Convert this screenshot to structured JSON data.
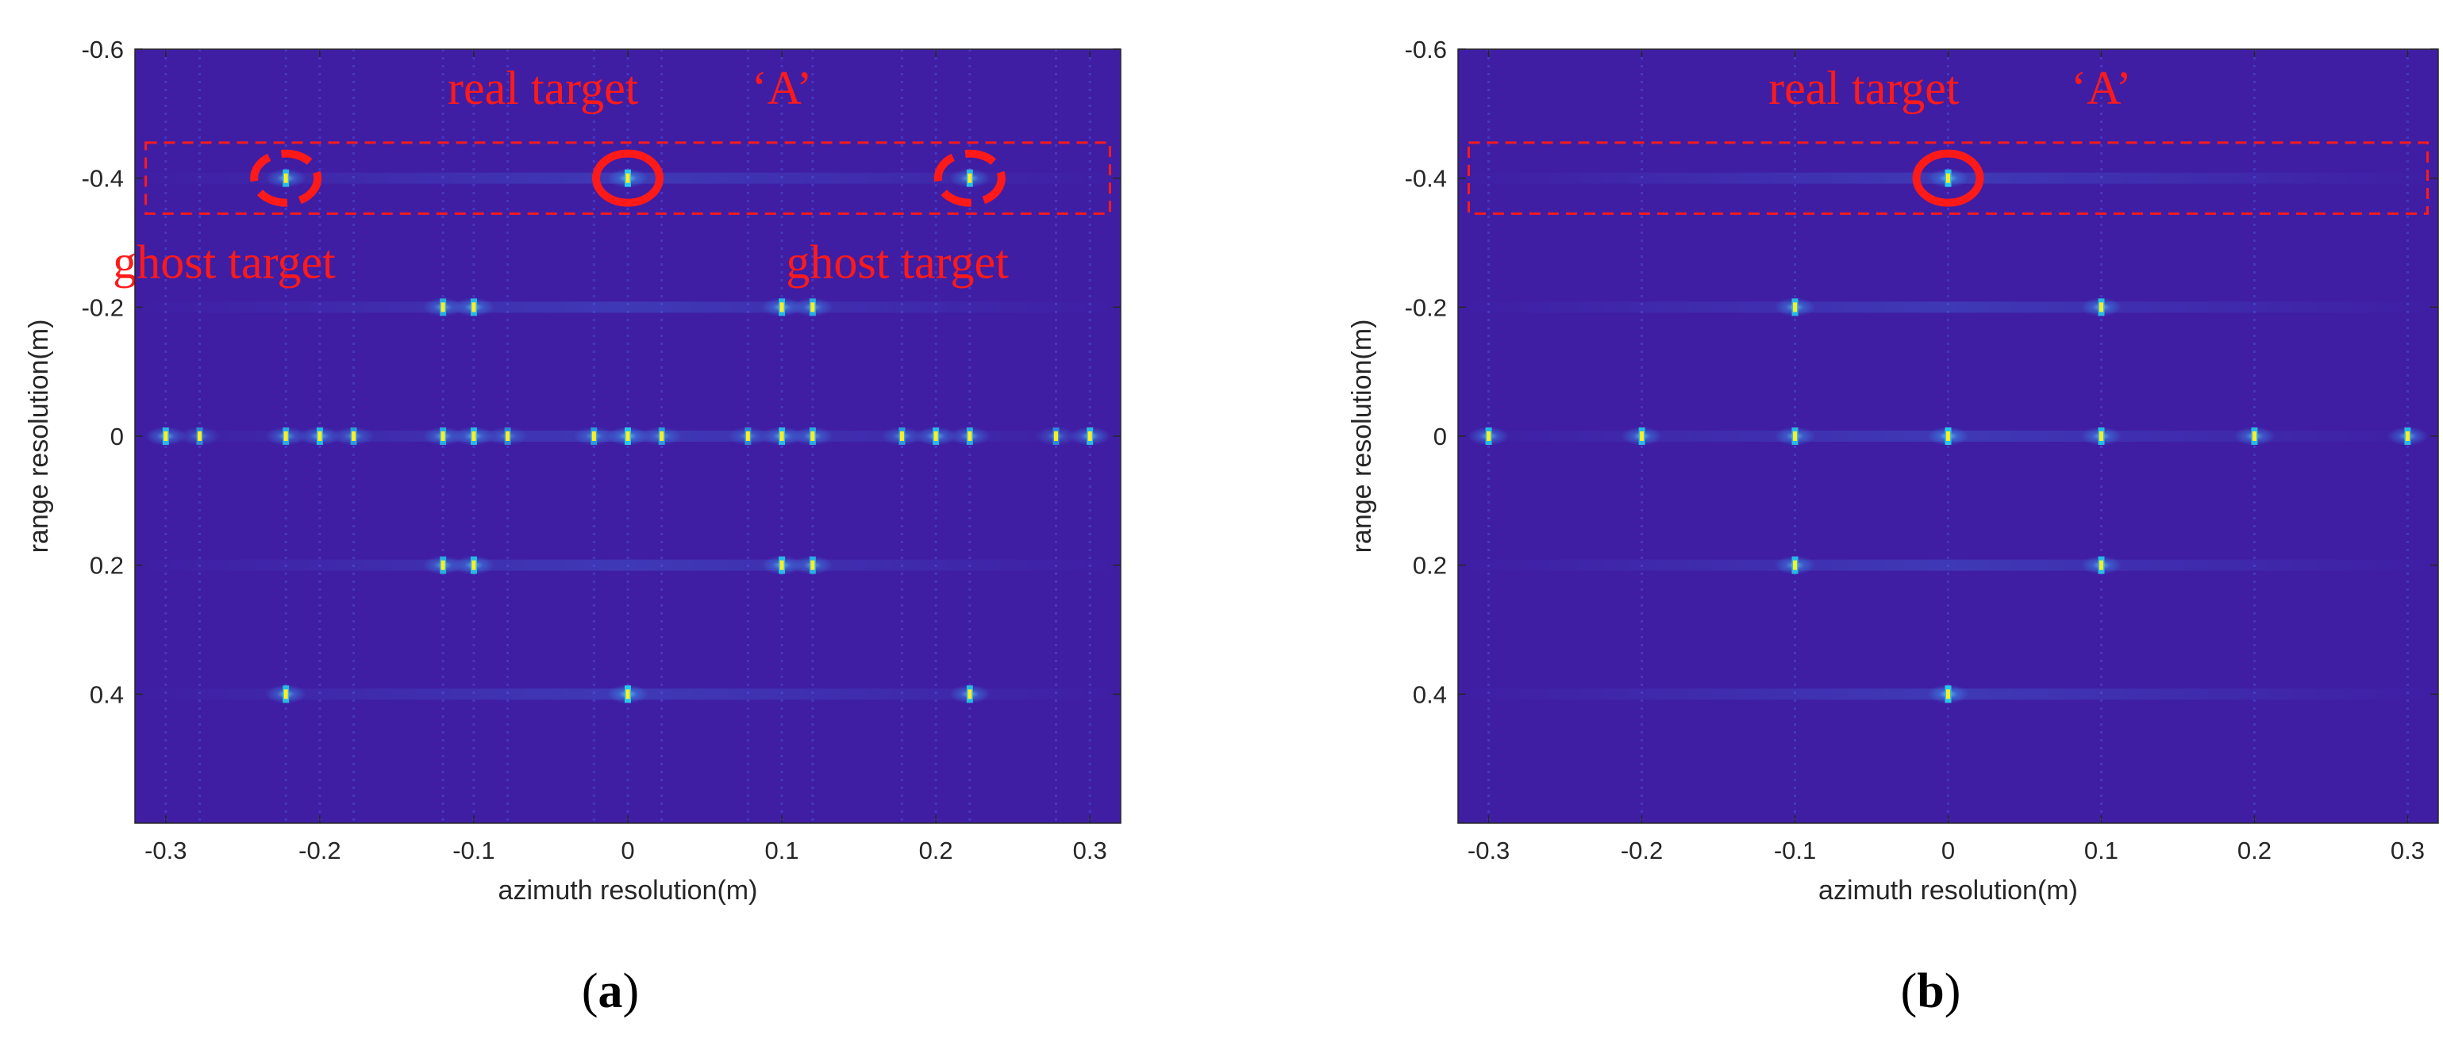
{
  "figure": {
    "bg_color": "#3f1ea4",
    "hot_color": "#ffee22",
    "annotation_color": "#ff1a1a"
  },
  "chart_data": [
    {
      "type": "heatmap",
      "panel": "(a)",
      "caption_letter": "a",
      "xlabel": "azimuth resolution(m)",
      "ylabel": "range resolution(m)",
      "xlim": [
        -0.32,
        0.32
      ],
      "ylim": [
        -0.6,
        0.6
      ],
      "y_reversed": true,
      "xticks": [
        -0.3,
        -0.2,
        -0.1,
        0,
        0.1,
        0.2,
        0.3
      ],
      "xtick_labels": [
        "-0.3",
        "-0.2",
        "-0.1",
        "0",
        "0.1",
        "0.2",
        "0.3"
      ],
      "yticks": [
        -0.6,
        -0.4,
        -0.2,
        0,
        0.2,
        0.4
      ],
      "ytick_labels": [
        "-0.6",
        "-0.4",
        "-0.2",
        "0",
        "0.2",
        "0.4"
      ],
      "points": [
        {
          "x": 0,
          "y": -0.4,
          "intensity": 1.0
        },
        {
          "x": -0.222,
          "y": -0.4,
          "intensity": 0.9
        },
        {
          "x": 0.222,
          "y": -0.4,
          "intensity": 0.9
        },
        {
          "x": -0.12,
          "y": -0.2,
          "intensity": 0.8
        },
        {
          "x": -0.1,
          "y": -0.2,
          "intensity": 0.9
        },
        {
          "x": 0.1,
          "y": -0.2,
          "intensity": 0.9
        },
        {
          "x": 0.12,
          "y": -0.2,
          "intensity": 0.8
        },
        {
          "x": -0.3,
          "y": 0,
          "intensity": 0.9
        },
        {
          "x": -0.278,
          "y": 0,
          "intensity": 0.6
        },
        {
          "x": -0.222,
          "y": 0,
          "intensity": 0.8
        },
        {
          "x": -0.2,
          "y": 0,
          "intensity": 0.9
        },
        {
          "x": -0.178,
          "y": 0,
          "intensity": 0.7
        },
        {
          "x": -0.12,
          "y": 0,
          "intensity": 0.8
        },
        {
          "x": -0.1,
          "y": 0,
          "intensity": 0.9
        },
        {
          "x": -0.078,
          "y": 0,
          "intensity": 0.6
        },
        {
          "x": -0.022,
          "y": 0,
          "intensity": 0.7
        },
        {
          "x": 0,
          "y": 0,
          "intensity": 1.0
        },
        {
          "x": 0.022,
          "y": 0,
          "intensity": 0.7
        },
        {
          "x": 0.078,
          "y": 0,
          "intensity": 0.6
        },
        {
          "x": 0.1,
          "y": 0,
          "intensity": 0.9
        },
        {
          "x": 0.12,
          "y": 0,
          "intensity": 0.8
        },
        {
          "x": 0.178,
          "y": 0,
          "intensity": 0.7
        },
        {
          "x": 0.2,
          "y": 0,
          "intensity": 0.9
        },
        {
          "x": 0.222,
          "y": 0,
          "intensity": 0.8
        },
        {
          "x": 0.278,
          "y": 0,
          "intensity": 0.6
        },
        {
          "x": 0.3,
          "y": 0,
          "intensity": 0.9
        },
        {
          "x": -0.12,
          "y": 0.2,
          "intensity": 0.8
        },
        {
          "x": -0.1,
          "y": 0.2,
          "intensity": 0.9
        },
        {
          "x": 0.1,
          "y": 0.2,
          "intensity": 0.9
        },
        {
          "x": 0.12,
          "y": 0.2,
          "intensity": 0.8
        },
        {
          "x": -0.222,
          "y": 0.4,
          "intensity": 0.9
        },
        {
          "x": 0,
          "y": 0.4,
          "intensity": 1.0
        },
        {
          "x": 0.222,
          "y": 0.4,
          "intensity": 0.9
        }
      ],
      "annotations": [
        {
          "text": "real target",
          "x": -0.055,
          "y": -0.515
        },
        {
          "text": "‘A’",
          "x": 0.1,
          "y": -0.515
        },
        {
          "text": "ghost target",
          "x": -0.262,
          "y": -0.245
        },
        {
          "text": "ghost target",
          "x": 0.175,
          "y": -0.245
        }
      ],
      "dashed_box": {
        "x0": -0.313,
        "x1": 0.313,
        "y0": -0.455,
        "y1": -0.345
      },
      "circles": [
        {
          "x": 0,
          "y": -0.4,
          "style": "solid"
        },
        {
          "x": -0.222,
          "y": -0.4,
          "style": "dashed"
        },
        {
          "x": 0.222,
          "y": -0.4,
          "style": "dashed"
        }
      ]
    },
    {
      "type": "heatmap",
      "panel": "(b)",
      "caption_letter": "b",
      "xlabel": "azimuth resolution(m)",
      "ylabel": "range resolution(m)",
      "xlim": [
        -0.32,
        0.32
      ],
      "ylim": [
        -0.6,
        0.6
      ],
      "y_reversed": true,
      "xticks": [
        -0.3,
        -0.2,
        -0.1,
        0,
        0.1,
        0.2,
        0.3
      ],
      "xtick_labels": [
        "-0.3",
        "-0.2",
        "-0.1",
        "0",
        "0.1",
        "0.2",
        "0.3"
      ],
      "yticks": [
        -0.6,
        -0.4,
        -0.2,
        0,
        0.2,
        0.4
      ],
      "ytick_labels": [
        "-0.6",
        "-0.4",
        "-0.2",
        "0",
        "0.2",
        "0.4"
      ],
      "points": [
        {
          "x": 0,
          "y": -0.4,
          "intensity": 1.0
        },
        {
          "x": -0.1,
          "y": -0.2,
          "intensity": 0.9
        },
        {
          "x": 0.1,
          "y": -0.2,
          "intensity": 0.9
        },
        {
          "x": -0.3,
          "y": 0,
          "intensity": 0.9
        },
        {
          "x": -0.2,
          "y": 0,
          "intensity": 0.9
        },
        {
          "x": -0.1,
          "y": 0,
          "intensity": 0.9
        },
        {
          "x": 0,
          "y": 0,
          "intensity": 1.0
        },
        {
          "x": 0.1,
          "y": 0,
          "intensity": 0.9
        },
        {
          "x": 0.2,
          "y": 0,
          "intensity": 0.9
        },
        {
          "x": 0.3,
          "y": 0,
          "intensity": 0.9
        },
        {
          "x": -0.1,
          "y": 0.2,
          "intensity": 0.9
        },
        {
          "x": 0.1,
          "y": 0.2,
          "intensity": 0.9
        },
        {
          "x": 0,
          "y": 0.4,
          "intensity": 1.0
        }
      ],
      "annotations": [
        {
          "text": "real target",
          "x": -0.055,
          "y": -0.515
        },
        {
          "text": "‘A’",
          "x": 0.1,
          "y": -0.515
        }
      ],
      "dashed_box": {
        "x0": -0.313,
        "x1": 0.313,
        "y0": -0.455,
        "y1": -0.345
      },
      "circles": [
        {
          "x": 0,
          "y": -0.4,
          "style": "solid"
        }
      ]
    }
  ]
}
